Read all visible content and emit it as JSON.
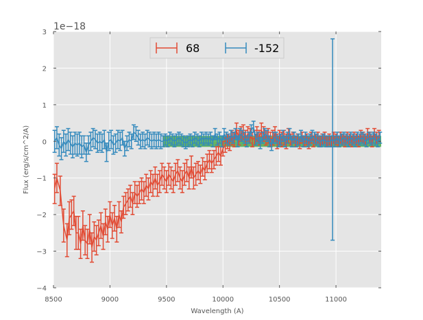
{
  "chart_data": {
    "type": "line",
    "title": "",
    "xlabel": "Wavelength (A)",
    "ylabel": "Flux (erg/s/cm^2/A)",
    "y_offset_label": "1e−18",
    "xlim": [
      8500,
      11400
    ],
    "ylim": [
      -4,
      3
    ],
    "xticks": [
      8500,
      9000,
      9500,
      10000,
      10500,
      11000
    ],
    "yticks": [
      -4,
      -3,
      -2,
      -1,
      0,
      1,
      2,
      3
    ],
    "ytick_labels": [
      "−4",
      "−3",
      "−2",
      "−1",
      "0",
      "1",
      "2",
      "3"
    ],
    "grid": true,
    "legend_position": "top-center",
    "background_color": "#e5e5e5",
    "band": {
      "x": [
        9470,
        11400
      ],
      "y": [
        -0.15,
        0.15
      ],
      "color": "#2ca02c"
    },
    "series": [
      {
        "name": "68",
        "color": "#e24a33",
        "x": [
          8510,
          8530,
          8560,
          8590,
          8620,
          8640,
          8660,
          8680,
          8700,
          8720,
          8740,
          8760,
          8780,
          8800,
          8820,
          8840,
          8860,
          8880,
          8900,
          8920,
          8940,
          8960,
          8980,
          9000,
          9020,
          9040,
          9060,
          9080,
          9100,
          9120,
          9140,
          9160,
          9180,
          9200,
          9220,
          9240,
          9260,
          9280,
          9300,
          9320,
          9340,
          9360,
          9380,
          9400,
          9420,
          9440,
          9460,
          9480,
          9500,
          9520,
          9540,
          9560,
          9580,
          9600,
          9620,
          9640,
          9660,
          9680,
          9700,
          9720,
          9740,
          9760,
          9780,
          9800,
          9820,
          9840,
          9860,
          9880,
          9900,
          9920,
          9940,
          9960,
          9980,
          10000,
          10020,
          10040,
          10060,
          10080,
          10100,
          10120,
          10140,
          10160,
          10180,
          10200,
          10220,
          10240,
          10260,
          10280,
          10300,
          10320,
          10340,
          10360,
          10380,
          10400,
          10420,
          10440,
          10460,
          10480,
          10500,
          10520,
          10540,
          10560,
          10580,
          10600,
          10620,
          10640,
          10660,
          10680,
          10700,
          10720,
          10740,
          10760,
          10780,
          10800,
          10820,
          10840,
          10860,
          10880,
          10900,
          10920,
          10940,
          10960,
          10980,
          11000,
          11020,
          11040,
          11060,
          11080,
          11100,
          11120,
          11140,
          11160,
          11180,
          11200,
          11220,
          11240,
          11260,
          11280,
          11300,
          11320,
          11340,
          11360,
          11380
        ],
        "y": [
          -1.3,
          -1.0,
          -1.35,
          -2.3,
          -2.7,
          -2.1,
          -2.0,
          -1.9,
          -2.5,
          -2.5,
          -2.8,
          -2.3,
          -2.7,
          -2.8,
          -2.4,
          -2.9,
          -2.6,
          -2.7,
          -2.5,
          -2.3,
          -2.6,
          -2.2,
          -2.4,
          -2.0,
          -2.3,
          -2.1,
          -2.4,
          -2.0,
          -2.2,
          -1.8,
          -1.7,
          -1.6,
          -1.5,
          -1.7,
          -1.4,
          -1.5,
          -1.4,
          -1.3,
          -1.4,
          -1.2,
          -1.3,
          -1.1,
          -1.2,
          -1.0,
          -1.2,
          -1.1,
          -0.9,
          -1.0,
          -1.1,
          -0.9,
          -1.0,
          -1.1,
          -0.9,
          -0.8,
          -1.0,
          -1.1,
          -0.9,
          -0.8,
          -1.0,
          -0.7,
          -1.0,
          -0.9,
          -0.8,
          -0.9,
          -0.7,
          -0.8,
          -0.6,
          -0.5,
          -0.6,
          -0.5,
          -0.4,
          -0.3,
          -0.4,
          -0.2,
          -0.1,
          0.0,
          -0.05,
          0.1,
          0.05,
          0.3,
          0.1,
          0.2,
          0.25,
          0.1,
          0.2,
          0.15,
          0.05,
          0.1,
          0.2,
          0.1,
          0.3,
          0.2,
          0.1,
          0.15,
          0.05,
          0.1,
          0.2,
          0.0,
          0.1,
          0.05,
          0.1,
          0.0,
          0.15,
          0.05,
          0.1,
          0.0,
          0.05,
          -0.05,
          0.1,
          0.0,
          0.05,
          -0.05,
          0.1,
          0.0,
          0.05,
          0.1,
          0.0,
          0.05,
          0.1,
          0.0,
          0.05,
          0.0,
          0.1,
          0.05,
          0.0,
          0.1,
          0.05,
          0.0,
          0.1,
          0.05,
          0.0,
          0.1,
          0.05,
          0.0,
          0.15,
          0.1,
          0.05,
          0.2,
          0.1,
          0.0,
          0.2,
          0.1,
          0.15
        ],
        "err": [
          0.4,
          0.4,
          0.4,
          0.45,
          0.45,
          0.45,
          0.4,
          0.4,
          0.45,
          0.45,
          0.4,
          0.4,
          0.4,
          0.4,
          0.4,
          0.4,
          0.4,
          0.4,
          0.35,
          0.35,
          0.35,
          0.35,
          0.35,
          0.35,
          0.35,
          0.35,
          0.35,
          0.35,
          0.3,
          0.3,
          0.3,
          0.3,
          0.3,
          0.3,
          0.3,
          0.3,
          0.3,
          0.3,
          0.3,
          0.3,
          0.3,
          0.3,
          0.3,
          0.3,
          0.3,
          0.3,
          0.3,
          0.3,
          0.3,
          0.3,
          0.3,
          0.3,
          0.3,
          0.3,
          0.3,
          0.3,
          0.3,
          0.3,
          0.3,
          0.3,
          0.3,
          0.3,
          0.25,
          0.25,
          0.25,
          0.25,
          0.25,
          0.25,
          0.25,
          0.25,
          0.25,
          0.25,
          0.25,
          0.2,
          0.2,
          0.2,
          0.2,
          0.2,
          0.2,
          0.2,
          0.2,
          0.2,
          0.2,
          0.2,
          0.2,
          0.2,
          0.2,
          0.2,
          0.2,
          0.2,
          0.2,
          0.2,
          0.2,
          0.2,
          0.2,
          0.2,
          0.2,
          0.2,
          0.2,
          0.2,
          0.2,
          0.2,
          0.2,
          0.15,
          0.15,
          0.15,
          0.15,
          0.15,
          0.15,
          0.15,
          0.15,
          0.15,
          0.15,
          0.15,
          0.15,
          0.15,
          0.15,
          0.15,
          0.15,
          0.15,
          0.15,
          0.15,
          0.15,
          0.15,
          0.15,
          0.15,
          0.15,
          0.15,
          0.15,
          0.15,
          0.15,
          0.15,
          0.15,
          0.15,
          0.15,
          0.15,
          0.15,
          0.15,
          0.15,
          0.15,
          0.15,
          0.15,
          0.15
        ]
      },
      {
        "name": "-152",
        "color": "#348abd",
        "x": [
          8510,
          8530,
          8550,
          8570,
          8590,
          8610,
          8630,
          8650,
          8670,
          8690,
          8710,
          8730,
          8750,
          8770,
          8790,
          8810,
          8830,
          8850,
          8870,
          8890,
          8910,
          8930,
          8950,
          8970,
          8990,
          9010,
          9030,
          9050,
          9070,
          9090,
          9110,
          9130,
          9150,
          9170,
          9190,
          9210,
          9230,
          9250,
          9270,
          9290,
          9310,
          9330,
          9350,
          9370,
          9390,
          9410,
          9430,
          9450,
          9470,
          9490,
          9510,
          9530,
          9550,
          9570,
          9590,
          9610,
          9630,
          9650,
          9670,
          9690,
          9710,
          9730,
          9750,
          9770,
          9790,
          9810,
          9830,
          9850,
          9870,
          9890,
          9910,
          9930,
          9950,
          9970,
          9990,
          10010,
          10030,
          10050,
          10070,
          10090,
          10110,
          10130,
          10150,
          10170,
          10190,
          10210,
          10230,
          10250,
          10270,
          10290,
          10310,
          10330,
          10350,
          10370,
          10390,
          10410,
          10430,
          10450,
          10470,
          10490,
          10510,
          10530,
          10550,
          10570,
          10590,
          10610,
          10630,
          10650,
          10670,
          10690,
          10710,
          10730,
          10750,
          10770,
          10790,
          10810,
          10830,
          10850,
          10870,
          10890,
          10910,
          10930,
          10950,
          10970,
          10990,
          11010,
          11030,
          11050,
          11070,
          11090,
          11110,
          11130,
          11150,
          11170,
          11190,
          11210,
          11230,
          11250,
          11270,
          11290,
          11310,
          11330,
          11350,
          11370,
          11390
        ],
        "y": [
          0.0,
          0.1,
          -0.1,
          -0.2,
          0.0,
          -0.1,
          0.05,
          -0.05,
          -0.15,
          -0.05,
          -0.1,
          -0.05,
          -0.15,
          -0.1,
          -0.3,
          -0.1,
          0.0,
          0.1,
          0.05,
          -0.05,
          0.0,
          -0.05,
          0.05,
          -0.3,
          0.0,
          0.05,
          -0.1,
          -0.05,
          0.05,
          0.0,
          0.1,
          -0.2,
          -0.05,
          0.05,
          0.0,
          0.25,
          0.2,
          0.1,
          0.0,
          0.05,
          0.0,
          0.1,
          0.05,
          0.0,
          0.05,
          0.0,
          0.05,
          0.0,
          0.0,
          0.05,
          0.0,
          0.1,
          0.05,
          0.0,
          0.05,
          0.1,
          0.05,
          0.0,
          -0.05,
          0.0,
          0.05,
          0.0,
          0.1,
          0.05,
          0.0,
          0.1,
          0.05,
          0.1,
          0.05,
          0.1,
          0.0,
          0.2,
          0.05,
          0.1,
          0.0,
          0.2,
          0.1,
          0.05,
          0.15,
          0.1,
          0.2,
          0.0,
          0.2,
          0.15,
          0.1,
          0.0,
          0.1,
          0.3,
          0.4,
          0.05,
          0.1,
          -0.05,
          0.1,
          0.2,
          0.15,
          0.0,
          -0.1,
          0.1,
          0.1,
          0.0,
          0.05,
          0.15,
          0.0,
          0.1,
          0.2,
          0.0,
          0.1,
          0.0,
          0.05,
          0.15,
          0.0,
          0.1,
          0.0,
          0.05,
          0.15,
          0.1,
          0.05,
          0.0,
          0.0,
          0.05,
          0.0,
          0.0,
          0.0,
          0.05,
          0.0,
          0.1,
          0.0,
          0.05,
          0.1,
          0.05,
          0.0,
          0.1,
          0.05,
          0.0,
          0.1,
          0.05,
          0.1,
          0.05,
          0.0,
          0.1,
          0.05,
          0.1,
          0.05,
          0.0,
          0.1
        ],
        "err": [
          0.3,
          0.3,
          0.3,
          0.3,
          0.3,
          0.3,
          0.3,
          0.3,
          0.3,
          0.3,
          0.3,
          0.3,
          0.3,
          0.25,
          0.25,
          0.25,
          0.25,
          0.25,
          0.25,
          0.25,
          0.25,
          0.25,
          0.25,
          0.25,
          0.25,
          0.25,
          0.25,
          0.25,
          0.25,
          0.25,
          0.2,
          0.2,
          0.2,
          0.2,
          0.2,
          0.2,
          0.2,
          0.2,
          0.2,
          0.2,
          0.2,
          0.2,
          0.2,
          0.2,
          0.2,
          0.2,
          0.2,
          0.2,
          0.15,
          0.15,
          0.15,
          0.15,
          0.15,
          0.15,
          0.15,
          0.15,
          0.15,
          0.15,
          0.15,
          0.15,
          0.15,
          0.15,
          0.15,
          0.15,
          0.15,
          0.15,
          0.15,
          0.15,
          0.15,
          0.15,
          0.15,
          0.15,
          0.15,
          0.15,
          0.15,
          0.15,
          0.15,
          0.15,
          0.15,
          0.15,
          0.15,
          0.15,
          0.15,
          0.15,
          0.15,
          0.15,
          0.15,
          0.15,
          0.15,
          0.15,
          0.15,
          0.15,
          0.15,
          0.15,
          0.15,
          0.15,
          0.15,
          0.15,
          0.15,
          0.15,
          0.15,
          0.15,
          0.15,
          0.15,
          0.15,
          0.15,
          0.15,
          0.15,
          0.15,
          0.15,
          0.15,
          0.15,
          0.15,
          0.15,
          0.15,
          0.15,
          0.15,
          0.15,
          0.15,
          0.15,
          0.15,
          0.15,
          0.15,
          2.75,
          0.15,
          0.15,
          0.15,
          0.15,
          0.15,
          0.15,
          0.15,
          0.15,
          0.15,
          0.15,
          0.15,
          0.15,
          0.15,
          0.15,
          0.15,
          0.15,
          0.15,
          0.15,
          0.15,
          0.15,
          0.15
        ]
      }
    ]
  }
}
